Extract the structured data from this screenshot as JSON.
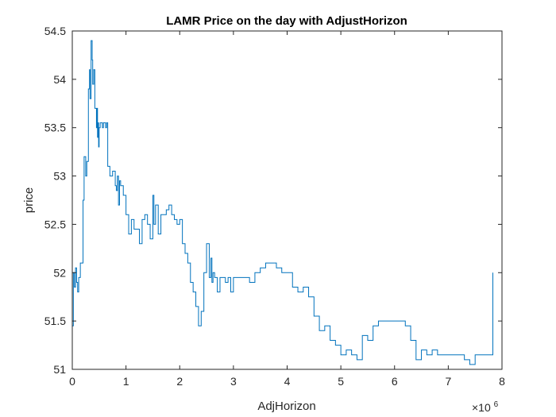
{
  "chart_data": {
    "type": "line",
    "title": "LAMR Price on the day with AdjustHorizon",
    "xlabel": "AdjHorizon",
    "ylabel": "price",
    "x_exponent_base": "×10",
    "x_exponent_power": "6",
    "xlim": [
      0,
      8
    ],
    "ylim": [
      51,
      54.5
    ],
    "xticks": [
      0,
      1,
      2,
      3,
      4,
      5,
      6,
      7,
      8
    ],
    "xtick_labels": [
      "0",
      "1",
      "2",
      "3",
      "4",
      "5",
      "6",
      "7",
      "8"
    ],
    "yticks": [
      51,
      51.5,
      52,
      52.5,
      53,
      53.5,
      54,
      54.5
    ],
    "ytick_labels": [
      "51",
      "51.5",
      "52",
      "52.5",
      "53",
      "53.5",
      "54",
      "54.5"
    ],
    "grid": false,
    "line_color": "#0072BD",
    "series": [
      {
        "x": [
          0.0,
          0.02,
          0.04,
          0.06,
          0.08,
          0.1,
          0.12,
          0.15,
          0.18,
          0.2,
          0.22,
          0.25,
          0.27,
          0.3,
          0.32,
          0.33,
          0.35,
          0.37,
          0.38,
          0.4,
          0.42,
          0.45,
          0.46,
          0.47,
          0.48,
          0.49,
          0.5,
          0.52,
          0.54,
          0.56,
          0.58,
          0.6,
          0.62,
          0.64,
          0.66,
          0.7,
          0.75,
          0.8,
          0.82,
          0.84,
          0.86,
          0.88,
          0.9,
          0.95,
          1.0,
          1.05,
          1.1,
          1.15,
          1.2,
          1.25,
          1.3,
          1.35,
          1.4,
          1.45,
          1.5,
          1.52,
          1.55,
          1.6,
          1.65,
          1.7,
          1.75,
          1.8,
          1.85,
          1.9,
          1.95,
          2.0,
          2.05,
          2.1,
          2.15,
          2.2,
          2.25,
          2.3,
          2.35,
          2.4,
          2.45,
          2.5,
          2.55,
          2.58,
          2.6,
          2.62,
          2.65,
          2.7,
          2.75,
          2.8,
          2.85,
          2.9,
          2.95,
          3.0,
          3.1,
          3.2,
          3.3,
          3.4,
          3.5,
          3.6,
          3.7,
          3.8,
          3.9,
          4.0,
          4.1,
          4.2,
          4.3,
          4.4,
          4.5,
          4.6,
          4.7,
          4.8,
          4.9,
          5.0,
          5.1,
          5.2,
          5.3,
          5.4,
          5.5,
          5.55,
          5.6,
          5.7,
          5.8,
          5.9,
          6.0,
          6.1,
          6.2,
          6.3,
          6.4,
          6.5,
          6.6,
          6.7,
          6.8,
          6.9,
          7.0,
          7.1,
          7.2,
          7.3,
          7.4,
          7.5,
          7.6,
          7.7,
          7.78,
          7.8,
          7.82,
          7.83
        ],
        "y": [
          51.45,
          52.0,
          51.85,
          52.05,
          51.9,
          51.8,
          51.95,
          52.1,
          52.1,
          52.75,
          53.2,
          53.0,
          53.15,
          53.9,
          54.1,
          53.8,
          54.4,
          54.2,
          53.95,
          54.1,
          53.7,
          53.5,
          53.7,
          53.4,
          53.55,
          53.3,
          53.5,
          53.55,
          53.55,
          53.5,
          53.55,
          53.55,
          53.5,
          53.55,
          53.1,
          53.0,
          53.05,
          52.9,
          52.85,
          53.0,
          52.7,
          52.95,
          52.9,
          52.8,
          52.6,
          52.4,
          52.55,
          52.45,
          52.45,
          52.3,
          52.55,
          52.6,
          52.5,
          52.35,
          52.8,
          52.5,
          52.7,
          52.4,
          52.6,
          52.6,
          52.65,
          52.7,
          52.6,
          52.55,
          52.5,
          52.55,
          52.3,
          52.2,
          52.1,
          51.9,
          51.8,
          51.65,
          51.45,
          51.6,
          52.0,
          52.3,
          51.95,
          52.15,
          51.9,
          52.0,
          51.95,
          51.8,
          51.95,
          51.95,
          51.9,
          51.95,
          51.8,
          51.95,
          51.95,
          51.95,
          51.9,
          52.0,
          52.05,
          52.1,
          52.1,
          52.05,
          52.0,
          52.0,
          51.85,
          51.8,
          51.85,
          51.75,
          51.55,
          51.4,
          51.45,
          51.3,
          51.25,
          51.15,
          51.2,
          51.15,
          51.1,
          51.35,
          51.3,
          51.3,
          51.45,
          51.5,
          51.5,
          51.5,
          51.5,
          51.5,
          51.45,
          51.3,
          51.1,
          51.2,
          51.15,
          51.2,
          51.15,
          51.15,
          51.15,
          51.15,
          51.15,
          51.1,
          51.05,
          51.15,
          51.15,
          51.15,
          51.15,
          51.15,
          51.15,
          52.0
        ]
      }
    ]
  }
}
